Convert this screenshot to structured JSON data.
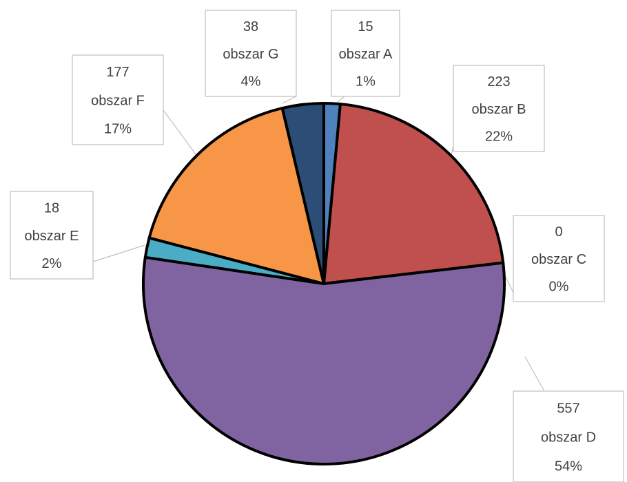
{
  "chart_data": {
    "type": "pie",
    "categories": [
      "obszar A",
      "obszar B",
      "obszar C",
      "obszar D",
      "obszar E",
      "obszar F",
      "obszar G"
    ],
    "values": [
      15,
      223,
      0,
      557,
      18,
      177,
      38
    ],
    "percent_labels": [
      "1%",
      "22%",
      "0%",
      "54%",
      "2%",
      "17%",
      "4%"
    ],
    "colors": [
      "#4f81bd",
      "#c0504d",
      "#9bbb59",
      "#8064a2",
      "#4bacc6",
      "#f79646",
      "#2c4d75"
    ]
  }
}
